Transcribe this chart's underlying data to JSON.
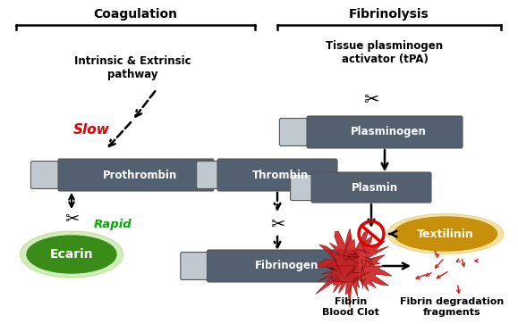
{
  "bg_color": "#ffffff",
  "coagulation_label": "Coagulation",
  "fibrinolysis_label": "Fibrinolysis",
  "intrinsic_label": "Intrinsic & Extrinsic\npathway",
  "tpa_label": "Tissue plasminogen\nactivator (tPA)",
  "slow_label": "Slow",
  "rapid_label": "Rapid",
  "box_color": "#526070",
  "box_text_color": "#ffffff",
  "box_tab_color": "#c0c8d0",
  "ecarin_color_inner": "#3a8c18",
  "ecarin_color_outer": "#80cc40",
  "ecarin_label": "Ecarin",
  "textilinin_color": "#c8900a",
  "textilinin_glow": "#e8c040",
  "textilinin_label": "Textilinin",
  "prothrombin_label": "Prothrombin",
  "thrombin_label": "Thrombin",
  "plasminogen_label": "Plasminogen",
  "plasmin_label": "Plasmin",
  "fibrinogen_label": "Fibrinogen",
  "fibrin_label": "Fibrin\nBlood Clot",
  "fibrin_deg_label": "Fibrin degradation\nfragments",
  "slow_color": "#dd0000",
  "rapid_color": "#00aa00",
  "no_symbol_color": "#dd0000",
  "clot_color": "#cc2020",
  "frag_color": "#cc2020"
}
